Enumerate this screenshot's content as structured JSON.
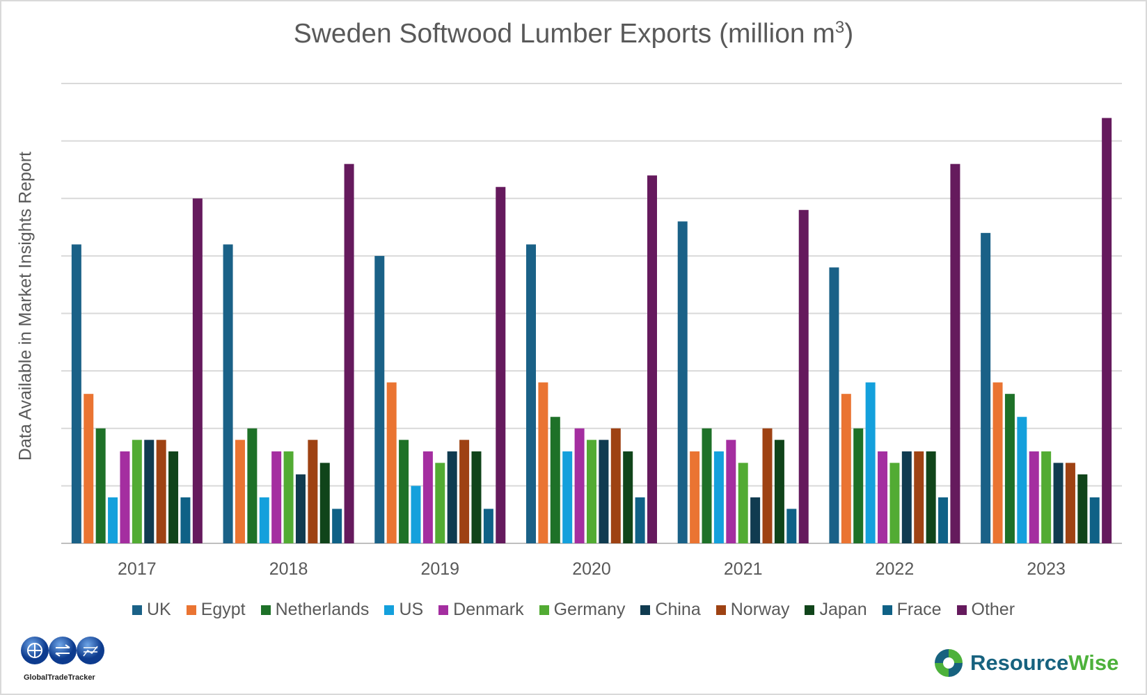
{
  "chart_data": {
    "type": "bar",
    "title": "Sweden Softwood Lumber Exports (million m³)",
    "title_main": "Sweden Softwood Lumber Exports (million m",
    "title_sup": "3",
    "title_end": ")",
    "ylabel": "Data Available in Market Insights Report",
    "xlabel": "",
    "ylim": [
      0,
      8
    ],
    "grid": true,
    "legend_position": "bottom",
    "categories": [
      "2017",
      "2018",
      "2019",
      "2020",
      "2021",
      "2022",
      "2023"
    ],
    "series": [
      {
        "name": "UK",
        "color": "#1a6187",
        "values": [
          5.2,
          5.2,
          5.0,
          5.2,
          5.6,
          4.8,
          5.4
        ]
      },
      {
        "name": "Egypt",
        "color": "#ea7432",
        "values": [
          2.6,
          1.8,
          2.8,
          2.8,
          1.6,
          2.6,
          2.8
        ]
      },
      {
        "name": "Netherlands",
        "color": "#1e7128",
        "values": [
          2.0,
          2.0,
          1.8,
          2.2,
          2.0,
          2.0,
          2.6
        ]
      },
      {
        "name": "US",
        "color": "#14a0dc",
        "values": [
          0.8,
          0.8,
          1.0,
          1.6,
          1.6,
          2.8,
          2.2
        ]
      },
      {
        "name": "Denmark",
        "color": "#a42ea0",
        "values": [
          1.6,
          1.6,
          1.6,
          2.0,
          1.8,
          1.6,
          1.6
        ]
      },
      {
        "name": "Germany",
        "color": "#52ab33",
        "values": [
          1.8,
          1.6,
          1.4,
          1.8,
          1.4,
          1.4,
          1.6
        ]
      },
      {
        "name": "China",
        "color": "#103b50",
        "values": [
          1.8,
          1.2,
          1.6,
          1.8,
          0.8,
          1.6,
          1.4
        ]
      },
      {
        "name": "Norway",
        "color": "#9e4213",
        "values": [
          1.8,
          1.8,
          1.8,
          2.0,
          2.0,
          1.6,
          1.4
        ]
      },
      {
        "name": "Japan",
        "color": "#10441a",
        "values": [
          1.6,
          1.4,
          1.6,
          1.6,
          1.8,
          1.6,
          1.2
        ]
      },
      {
        "name": "Frace",
        "color": "#0f6186",
        "values": [
          0.8,
          0.6,
          0.6,
          0.8,
          0.6,
          0.8,
          0.8
        ]
      },
      {
        "name": "Other",
        "color": "#651a5d",
        "values": [
          6.0,
          6.6,
          6.2,
          6.4,
          5.8,
          6.6,
          7.4
        ]
      }
    ]
  },
  "logos": {
    "left": "GlobalTradeTracker",
    "right_a": "Resource",
    "right_b": "Wise"
  }
}
